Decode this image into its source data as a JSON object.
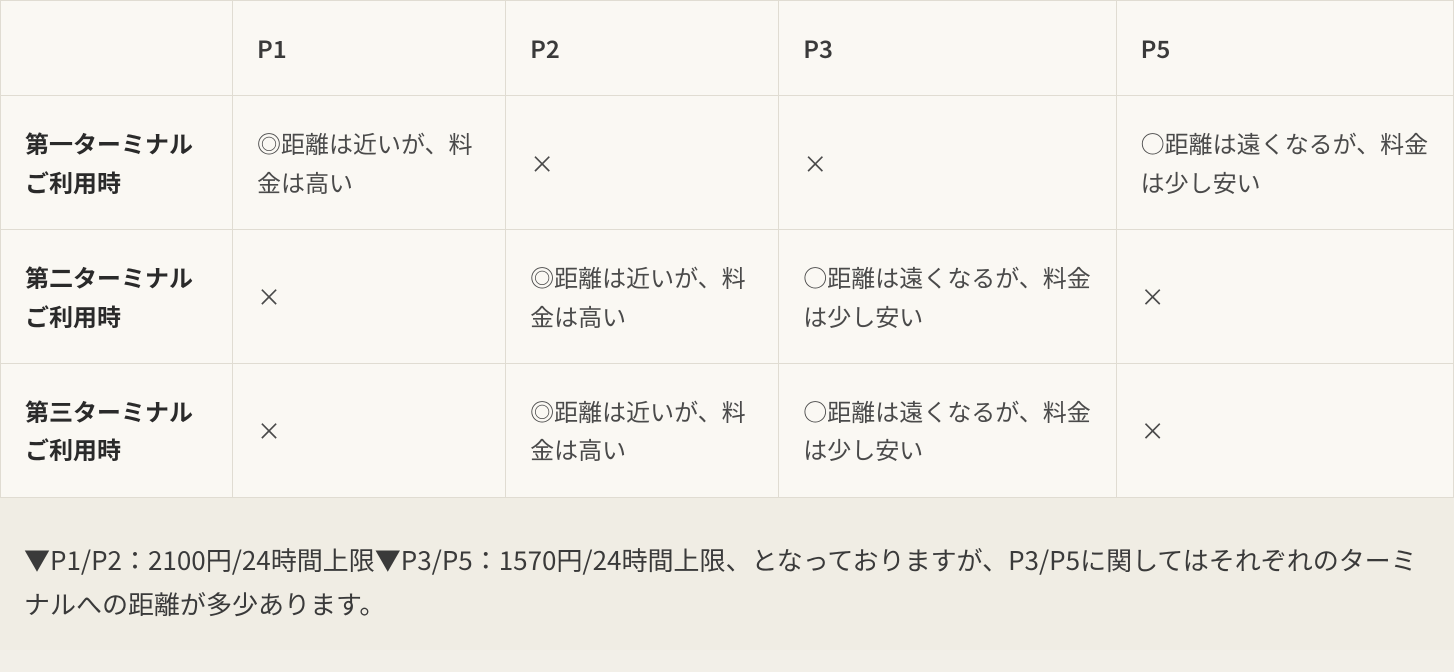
{
  "table": {
    "columns": [
      "P1",
      "P2",
      "P3",
      "P5"
    ],
    "rows": [
      {
        "header": "第一ターミナルご利用時",
        "cells": [
          "◎距離は近いが、料金は高い",
          "×",
          "×",
          "○距離は遠くなるが、料金は少し安い"
        ]
      },
      {
        "header": "第二ターミナルご利用時",
        "cells": [
          "×",
          "◎距離は近いが、料金は高い",
          "○距離は遠くなるが、料金は少し安い",
          "×"
        ]
      },
      {
        "header": "第三ターミナルご利用時",
        "cells": [
          "×",
          "◎距離は近いが、料金は高い",
          "○距離は遠くなるが、料金は少し安い",
          "×"
        ]
      }
    ],
    "col_widths": [
      "232px",
      "278px",
      "278px",
      "330px",
      "336px"
    ],
    "border_color": "#e0dcd2",
    "cell_bg": "#faf8f3",
    "header_text_color": "#3a3a3a",
    "body_text_color": "#4a4a4a",
    "row_header_text_color": "#2a2a2a",
    "font_size": 24
  },
  "footnote": {
    "text": "▼P1/P2：2100円/24時間上限▼P3/P5：1570円/24時間上限、となっておりますが、P3/P5に関してはそれぞれのターミナルへの距離が多少あります。",
    "bg_color": "#f0ede4",
    "text_color": "#3a3a3a",
    "font_size": 26
  },
  "page_bg": "#f2efe8"
}
